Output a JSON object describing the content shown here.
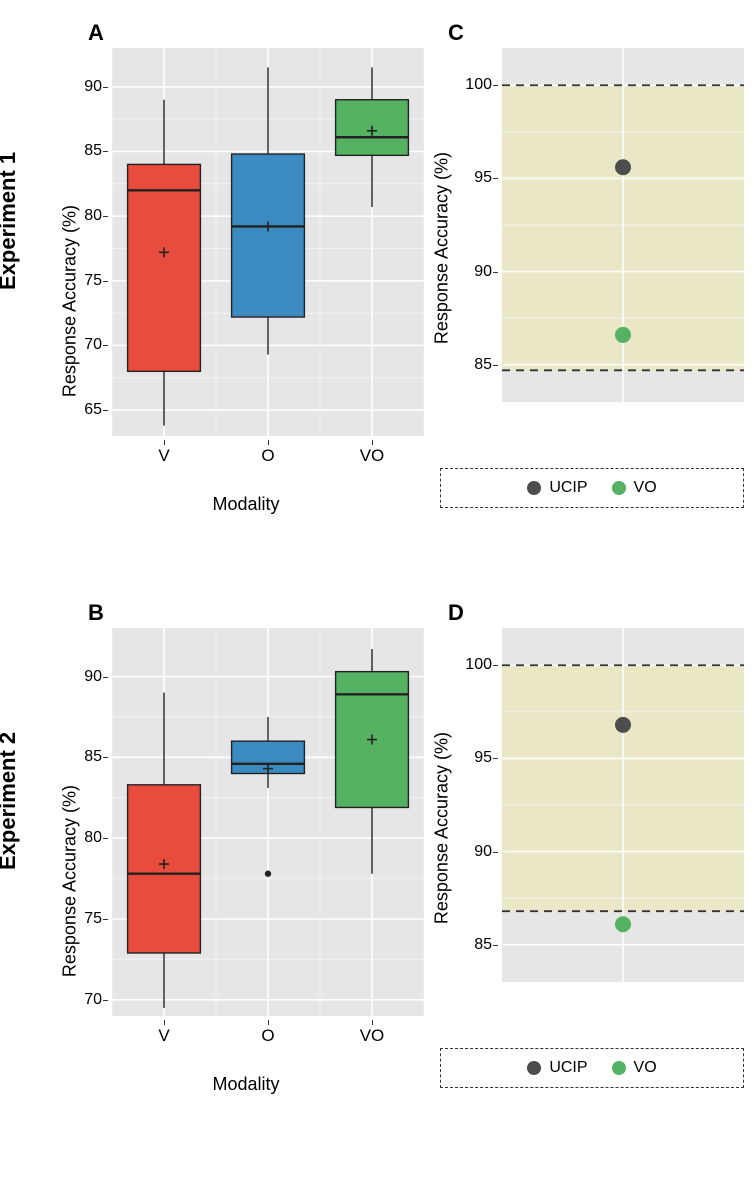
{
  "rows": [
    {
      "label": "Experiment 1"
    },
    {
      "label": "Experiment 2"
    }
  ],
  "panels": {
    "A": {
      "letter": "A",
      "type": "boxplot",
      "y_label": "Response Accuracy (%)",
      "x_label": "Modality",
      "ylim": [
        63,
        93
      ],
      "y_ticks": [
        65,
        70,
        75,
        80,
        85,
        90
      ],
      "categories": [
        "V",
        "O",
        "VO"
      ],
      "plot_bg": "#e6e6e6",
      "grid_major_color": "#ffffff",
      "grid_minor_color": "#f2f2f2",
      "boxes": [
        {
          "fill": "#e84c3d",
          "stroke": "#222222",
          "min": 63.8,
          "q1": 68.0,
          "median": 82.0,
          "q3": 84.0,
          "max": 89.0,
          "mean": 77.2,
          "outliers": []
        },
        {
          "fill": "#3b8bc1",
          "stroke": "#222222",
          "min": 69.3,
          "q1": 72.2,
          "median": 79.2,
          "q3": 84.8,
          "max": 91.5,
          "mean": 79.2,
          "outliers": []
        },
        {
          "fill": "#55b262",
          "stroke": "#222222",
          "min": 80.7,
          "q1": 84.7,
          "median": 86.1,
          "q3": 89.0,
          "max": 91.5,
          "mean": 86.6,
          "outliers": []
        }
      ]
    },
    "B": {
      "letter": "B",
      "type": "boxplot",
      "y_label": "Response Accuracy (%)",
      "x_label": "Modality",
      "ylim": [
        69,
        93
      ],
      "y_ticks": [
        70,
        75,
        80,
        85,
        90
      ],
      "categories": [
        "V",
        "O",
        "VO"
      ],
      "plot_bg": "#e6e6e6",
      "grid_major_color": "#ffffff",
      "grid_minor_color": "#f2f2f2",
      "boxes": [
        {
          "fill": "#e84c3d",
          "stroke": "#222222",
          "min": 69.5,
          "q1": 72.9,
          "median": 77.8,
          "q3": 83.3,
          "max": 89.0,
          "mean": 78.4,
          "outliers": []
        },
        {
          "fill": "#3b8bc1",
          "stroke": "#222222",
          "min": 83.1,
          "q1": 84.0,
          "median": 84.6,
          "q3": 86.0,
          "max": 87.5,
          "mean": 84.3,
          "outliers": [
            77.8
          ]
        },
        {
          "fill": "#55b262",
          "stroke": "#222222",
          "min": 77.8,
          "q1": 81.9,
          "median": 88.9,
          "q3": 90.3,
          "max": 91.7,
          "mean": 86.1,
          "outliers": []
        }
      ]
    },
    "C": {
      "letter": "C",
      "type": "scatter",
      "y_label": "Response Accuracy (%)",
      "ylim": [
        83,
        102
      ],
      "y_ticks": [
        85,
        90,
        95,
        100
      ],
      "plot_bg": "#e6e6e6",
      "grid_major_color": "#ffffff",
      "grid_minor_color": "#f2f2f2",
      "band_color": "#e9e7bb",
      "band_low": 84.7,
      "band_high": 100,
      "dash_lines": [
        84.7,
        100
      ],
      "points": [
        {
          "label": "UCIP",
          "y": 95.6,
          "color": "#4d4d4d"
        },
        {
          "label": "VO",
          "y": 86.6,
          "color": "#55b262"
        }
      ],
      "legend": [
        {
          "label": "UCIP",
          "color": "#4d4d4d"
        },
        {
          "label": "VO",
          "color": "#55b262"
        }
      ]
    },
    "D": {
      "letter": "D",
      "type": "scatter",
      "y_label": "Response Accuracy (%)",
      "ylim": [
        83,
        102
      ],
      "y_ticks": [
        85,
        90,
        95,
        100
      ],
      "plot_bg": "#e6e6e6",
      "grid_major_color": "#ffffff",
      "grid_minor_color": "#f2f2f2",
      "band_color": "#e9e7bb",
      "band_low": 86.8,
      "band_high": 100,
      "dash_lines": [
        86.8,
        100
      ],
      "points": [
        {
          "label": "UCIP",
          "y": 96.8,
          "color": "#4d4d4d"
        },
        {
          "label": "VO",
          "y": 86.1,
          "color": "#55b262"
        }
      ],
      "legend": [
        {
          "label": "UCIP",
          "color": "#4d4d4d"
        },
        {
          "label": "VO",
          "color": "#55b262"
        }
      ]
    }
  }
}
